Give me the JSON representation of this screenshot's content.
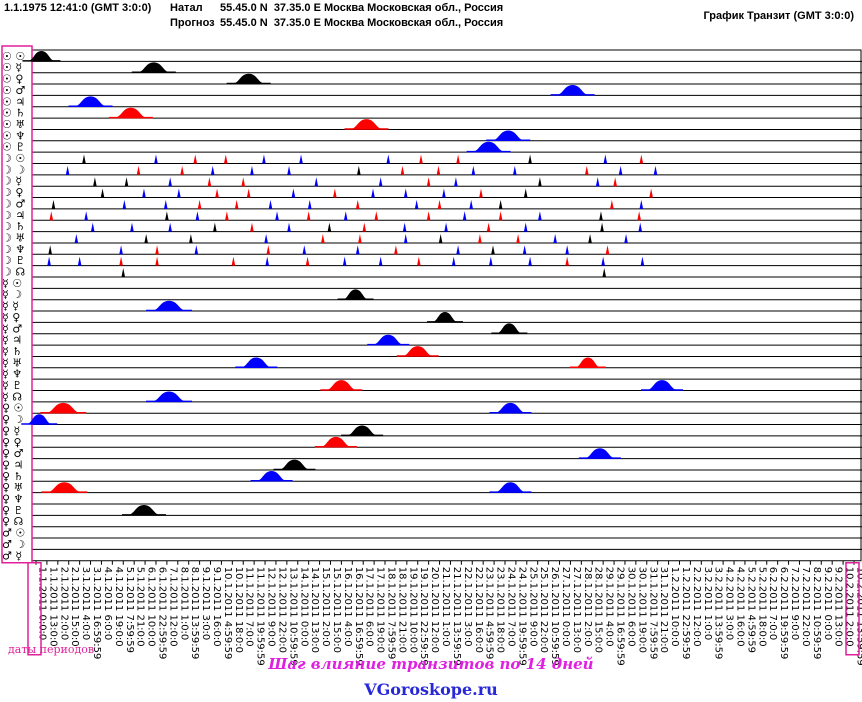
{
  "header": {
    "date_text": "1.1.1975 12:41:0 (GMT 3:0:0)",
    "natal_label": "Натал",
    "natal_coords": "55.45.0 N  37.35.0 E",
    "natal_place": "Москва Московская обл., Россия",
    "forecast_label": "Прогноз",
    "forecast_coords": "55.45.0 N  37.35.0 E",
    "forecast_place": "Москва Московская обл., Россия",
    "chart_title": "График Транзит (GMT 3:0:0)"
  },
  "colors": {
    "black": "#000000",
    "blue": "#0000ff",
    "red": "#ff0000",
    "highlight": "#e0209a",
    "grid": "#000000"
  },
  "footer": {
    "periods_label": "даты периодов",
    "step_note": "Шаг влияние транзитов по 14 дней",
    "site_name": "VGoroskope.ru"
  },
  "chart_data": {
    "type": "timeline",
    "title": "График Транзит (GMT 3:0:0)",
    "row_labels": [
      "☉ ☉",
      "☉ ☿",
      "☉ ♀",
      "☉ ♂",
      "☉ ♃",
      "☉ ♄",
      "☉ ♅",
      "☉ ♆",
      "☉ ♇",
      "☽ ☉",
      "☽ ☽",
      "☽ ☿",
      "☽ ♀",
      "☽ ♂",
      "☽ ♃",
      "☽ ♄",
      "☽ ♅",
      "☽ ♆",
      "☽ ♇",
      "☽ ☊",
      "☿ ☉",
      "☿ ☽",
      "☿ ☿",
      "☿ ♀",
      "☿ ♂",
      "☿ ♃",
      "☿ ♄",
      "☿ ♅",
      "☿ ♆",
      "☿ ♇",
      "☿ ☊",
      "♀ ☉",
      "♀ ☽",
      "♀ ☿",
      "♀ ♀",
      "♀ ♂",
      "♀ ♃",
      "♀ ♄",
      "♀ ♅",
      "♀ ♆",
      "♀ ♇",
      "♀ ☊",
      "♂ ☉",
      "♂ ☽",
      "♂ ☿"
    ],
    "x_ticks": [
      "1.1.2011 0:0:0",
      "1.1.2011 13:0:0",
      "2.1.2011 2:0:0",
      "2.1.2011 15:0:0",
      "3.1.2011 4:0:0",
      "3.1.2011 16:59:59",
      "4.1.2011 6:0:0",
      "4.1.2011 19:0:0",
      "5.1.2011 7:59:59",
      "5.1.2011 21:0:0",
      "6.1.2011 10:0:0",
      "6.1.2011 22:59:59",
      "7.1.2011 12:0:0",
      "8.1.2011 1:0:0",
      "8.1.2011 13:59:59",
      "9.1.2011 3:0:0",
      "9.1.2011 16:0:0",
      "10.1.2011 4:59:59",
      "10.1.2011 18:0:0",
      "11.1.2011 7:0:0",
      "11.1.2011 19:59:59",
      "12.1.2011 9:0:0",
      "12.1.2011 22:0:0",
      "13.1.2011 10:59:59",
      "14.1.2011 0:0:0",
      "14.1.2011 13:0:0",
      "15.1.2011 2:0:0",
      "15.1.2011 15:0:0",
      "16.1.2011 4:0:0",
      "16.1.2011 16:59:59",
      "17.1.2011 6:0:0",
      "17.1.2011 19:0:0",
      "18.1.2011 7:59:59",
      "18.1.2011 21:0:0",
      "19.1.2011 10:0:0",
      "19.1.2011 22:59:59",
      "20.1.2011 12:0:0",
      "21.1.2011 1:0:0",
      "21.1.2011 13:59:59",
      "22.1.2011 3:0:0",
      "22.1.2011 16:0:0",
      "23.1.2011 4:59:59",
      "23.1.2011 18:0:0",
      "24.1.2011 7:0:0",
      "24.1.2011 19:59:59",
      "25.1.2011 9:0:0",
      "25.1.2011 22:0:0",
      "26.1.2011 10:59:59",
      "27.1.2011 0:0:0",
      "27.1.2011 13:0:0",
      "28.1.2011 2:0:0",
      "28.1.2011 15:0:0",
      "29.1.2011 4:0:0",
      "29.1.2011 16:59:59",
      "30.1.2011 6:0:0",
      "30.1.2011 19:0:0",
      "31.1.2011 7:59:59",
      "31.1.2011 21:0:0",
      "1.2.2011 10:0:0",
      "1.2.2011 22:59:59",
      "2.2.2011 12:0:0",
      "3.2.2011 1:0:0",
      "3.2.2011 13:59:59",
      "4.2.2011 3:0:0",
      "4.2.2011 16:0:0",
      "5.2.2011 4:59:59",
      "5.2.2011 18:0:0",
      "6.2.2011 7:0:0",
      "6.2.2011 19:59:59",
      "7.2.2011 9:0:0",
      "7.2.2011 22:0:0",
      "8.2.2011 10:59:59",
      "9.2.2011 0:0:0",
      "9.2.2011 13:0:0",
      "10.2.2011 2:0:0",
      "10.2.2011 13:59:59"
    ],
    "peaks": [
      {
        "row": 0,
        "pos": 0.5,
        "color": "black",
        "w": 30
      },
      {
        "row": 1,
        "pos": 10.8,
        "color": "black",
        "w": 36
      },
      {
        "row": 2,
        "pos": 19.5,
        "color": "black",
        "w": 36
      },
      {
        "row": 3,
        "pos": 49.2,
        "color": "blue",
        "w": 36
      },
      {
        "row": 4,
        "pos": 5.0,
        "color": "blue",
        "w": 36
      },
      {
        "row": 5,
        "pos": 8.7,
        "color": "red",
        "w": 36
      },
      {
        "row": 6,
        "pos": 30.3,
        "color": "red",
        "w": 36
      },
      {
        "row": 7,
        "pos": 43.3,
        "color": "blue",
        "w": 36
      },
      {
        "row": 8,
        "pos": 41.5,
        "color": "blue",
        "w": 36
      },
      {
        "row": 21,
        "pos": 29.3,
        "color": "black",
        "w": 28
      },
      {
        "row": 22,
        "pos": 12.2,
        "color": "blue",
        "w": 38
      },
      {
        "row": 23,
        "pos": 37.5,
        "color": "black",
        "w": 28
      },
      {
        "row": 24,
        "pos": 43.4,
        "color": "black",
        "w": 28
      },
      {
        "row": 25,
        "pos": 32.3,
        "color": "blue",
        "w": 34
      },
      {
        "row": 26,
        "pos": 35.0,
        "color": "red",
        "w": 34
      },
      {
        "row": 27,
        "pos": 20.2,
        "color": "blue",
        "w": 34
      },
      {
        "row": 27,
        "pos": 50.6,
        "color": "red",
        "w": 28
      },
      {
        "row": 29,
        "pos": 28.0,
        "color": "red",
        "w": 34
      },
      {
        "row": 29,
        "pos": 57.4,
        "color": "blue",
        "w": 34
      },
      {
        "row": 30,
        "pos": 12.2,
        "color": "blue",
        "w": 38
      },
      {
        "row": 31,
        "pos": 2.5,
        "color": "red",
        "w": 38
      },
      {
        "row": 31,
        "pos": 43.5,
        "color": "blue",
        "w": 34
      },
      {
        "row": 32,
        "pos": 0.3,
        "color": "blue",
        "w": 28
      },
      {
        "row": 33,
        "pos": 29.9,
        "color": "black",
        "w": 34
      },
      {
        "row": 34,
        "pos": 27.5,
        "color": "red",
        "w": 34
      },
      {
        "row": 35,
        "pos": 51.7,
        "color": "blue",
        "w": 34
      },
      {
        "row": 36,
        "pos": 23.7,
        "color": "black",
        "w": 34
      },
      {
        "row": 37,
        "pos": 21.6,
        "color": "blue",
        "w": 34
      },
      {
        "row": 38,
        "pos": 2.6,
        "color": "red",
        "w": 38
      },
      {
        "row": 38,
        "pos": 43.5,
        "color": "blue",
        "w": 34
      },
      {
        "row": 40,
        "pos": 9.9,
        "color": "black",
        "w": 36
      }
    ],
    "moon_spikes": [
      {
        "row": 9,
        "pos": 4.4,
        "color": "black"
      },
      {
        "row": 9,
        "pos": 11.0,
        "color": "blue"
      },
      {
        "row": 9,
        "pos": 14.6,
        "color": "red"
      },
      {
        "row": 9,
        "pos": 17.4,
        "color": "red"
      },
      {
        "row": 9,
        "pos": 20.9,
        "color": "blue"
      },
      {
        "row": 9,
        "pos": 24.3,
        "color": "blue"
      },
      {
        "row": 9,
        "pos": 32.3,
        "color": "blue"
      },
      {
        "row": 9,
        "pos": 35.3,
        "color": "red"
      },
      {
        "row": 9,
        "pos": 38.7,
        "color": "red"
      },
      {
        "row": 9,
        "pos": 45.3,
        "color": "black"
      },
      {
        "row": 9,
        "pos": 52.2,
        "color": "blue"
      },
      {
        "row": 9,
        "pos": 55.5,
        "color": "red"
      },
      {
        "row": 10,
        "pos": 2.9,
        "color": "blue"
      },
      {
        "row": 10,
        "pos": 9.4,
        "color": "red"
      },
      {
        "row": 10,
        "pos": 13.4,
        "color": "red"
      },
      {
        "row": 10,
        "pos": 16.2,
        "color": "blue"
      },
      {
        "row": 10,
        "pos": 19.8,
        "color": "blue"
      },
      {
        "row": 10,
        "pos": 23.2,
        "color": "blue"
      },
      {
        "row": 10,
        "pos": 29.6,
        "color": "black"
      },
      {
        "row": 10,
        "pos": 33.6,
        "color": "red"
      },
      {
        "row": 10,
        "pos": 36.9,
        "color": "red"
      },
      {
        "row": 10,
        "pos": 40.1,
        "color": "blue"
      },
      {
        "row": 10,
        "pos": 43.9,
        "color": "blue"
      },
      {
        "row": 10,
        "pos": 50.5,
        "color": "red"
      },
      {
        "row": 10,
        "pos": 53.6,
        "color": "blue"
      },
      {
        "row": 10,
        "pos": 56.8,
        "color": "blue"
      },
      {
        "row": 11,
        "pos": 5.4,
        "color": "black"
      },
      {
        "row": 11,
        "pos": 8.3,
        "color": "black"
      },
      {
        "row": 11,
        "pos": 12.3,
        "color": "blue"
      },
      {
        "row": 11,
        "pos": 15.9,
        "color": "red"
      },
      {
        "row": 11,
        "pos": 19.0,
        "color": "red"
      },
      {
        "row": 11,
        "pos": 25.7,
        "color": "blue"
      },
      {
        "row": 11,
        "pos": 31.6,
        "color": "blue"
      },
      {
        "row": 11,
        "pos": 36.0,
        "color": "red"
      },
      {
        "row": 11,
        "pos": 38.5,
        "color": "blue"
      },
      {
        "row": 11,
        "pos": 46.2,
        "color": "black"
      },
      {
        "row": 11,
        "pos": 51.5,
        "color": "blue"
      },
      {
        "row": 11,
        "pos": 53.1,
        "color": "red"
      },
      {
        "row": 12,
        "pos": 6.1,
        "color": "black"
      },
      {
        "row": 12,
        "pos": 9.9,
        "color": "blue"
      },
      {
        "row": 12,
        "pos": 13.1,
        "color": "blue"
      },
      {
        "row": 12,
        "pos": 16.6,
        "color": "red"
      },
      {
        "row": 12,
        "pos": 19.5,
        "color": "red"
      },
      {
        "row": 12,
        "pos": 23.6,
        "color": "blue"
      },
      {
        "row": 12,
        "pos": 27.4,
        "color": "red"
      },
      {
        "row": 12,
        "pos": 30.9,
        "color": "blue"
      },
      {
        "row": 12,
        "pos": 33.9,
        "color": "blue"
      },
      {
        "row": 12,
        "pos": 37.4,
        "color": "blue"
      },
      {
        "row": 12,
        "pos": 40.8,
        "color": "red"
      },
      {
        "row": 12,
        "pos": 44.9,
        "color": "black"
      },
      {
        "row": 12,
        "pos": 56.4,
        "color": "red"
      },
      {
        "row": 13,
        "pos": 1.6,
        "color": "black"
      },
      {
        "row": 13,
        "pos": 8.1,
        "color": "blue"
      },
      {
        "row": 13,
        "pos": 11.9,
        "color": "blue"
      },
      {
        "row": 13,
        "pos": 15.0,
        "color": "red"
      },
      {
        "row": 13,
        "pos": 18.4,
        "color": "red"
      },
      {
        "row": 13,
        "pos": 21.5,
        "color": "blue"
      },
      {
        "row": 13,
        "pos": 25.1,
        "color": "blue"
      },
      {
        "row": 13,
        "pos": 29.5,
        "color": "red"
      },
      {
        "row": 13,
        "pos": 34.9,
        "color": "blue"
      },
      {
        "row": 13,
        "pos": 37.0,
        "color": "red"
      },
      {
        "row": 13,
        "pos": 39.9,
        "color": "blue"
      },
      {
        "row": 13,
        "pos": 42.6,
        "color": "black"
      },
      {
        "row": 13,
        "pos": 52.8,
        "color": "red"
      },
      {
        "row": 13,
        "pos": 55.5,
        "color": "blue"
      },
      {
        "row": 14,
        "pos": 1.4,
        "color": "red"
      },
      {
        "row": 14,
        "pos": 4.6,
        "color": "blue"
      },
      {
        "row": 14,
        "pos": 12.0,
        "color": "black"
      },
      {
        "row": 14,
        "pos": 14.8,
        "color": "blue"
      },
      {
        "row": 14,
        "pos": 17.5,
        "color": "red"
      },
      {
        "row": 14,
        "pos": 22.1,
        "color": "blue"
      },
      {
        "row": 14,
        "pos": 25.0,
        "color": "red"
      },
      {
        "row": 14,
        "pos": 28.4,
        "color": "blue"
      },
      {
        "row": 14,
        "pos": 31.2,
        "color": "red"
      },
      {
        "row": 14,
        "pos": 36.0,
        "color": "red"
      },
      {
        "row": 14,
        "pos": 39.3,
        "color": "blue"
      },
      {
        "row": 14,
        "pos": 42.6,
        "color": "red"
      },
      {
        "row": 14,
        "pos": 46.2,
        "color": "blue"
      },
      {
        "row": 14,
        "pos": 51.8,
        "color": "black"
      },
      {
        "row": 14,
        "pos": 55.3,
        "color": "red"
      },
      {
        "row": 15,
        "pos": 5.2,
        "color": "blue"
      },
      {
        "row": 15,
        "pos": 8.8,
        "color": "blue"
      },
      {
        "row": 15,
        "pos": 12.3,
        "color": "blue"
      },
      {
        "row": 15,
        "pos": 16.4,
        "color": "black"
      },
      {
        "row": 15,
        "pos": 19.8,
        "color": "red"
      },
      {
        "row": 15,
        "pos": 23.2,
        "color": "blue"
      },
      {
        "row": 15,
        "pos": 26.9,
        "color": "black"
      },
      {
        "row": 15,
        "pos": 30.1,
        "color": "red"
      },
      {
        "row": 15,
        "pos": 33.8,
        "color": "blue"
      },
      {
        "row": 15,
        "pos": 37.6,
        "color": "blue"
      },
      {
        "row": 15,
        "pos": 41.5,
        "color": "red"
      },
      {
        "row": 15,
        "pos": 44.9,
        "color": "blue"
      },
      {
        "row": 15,
        "pos": 51.9,
        "color": "black"
      },
      {
        "row": 15,
        "pos": 55.4,
        "color": "blue"
      },
      {
        "row": 16,
        "pos": 3.7,
        "color": "blue"
      },
      {
        "row": 16,
        "pos": 10.1,
        "color": "black"
      },
      {
        "row": 16,
        "pos": 14.2,
        "color": "black"
      },
      {
        "row": 16,
        "pos": 21.1,
        "color": "blue"
      },
      {
        "row": 16,
        "pos": 26.3,
        "color": "red"
      },
      {
        "row": 16,
        "pos": 29.7,
        "color": "red"
      },
      {
        "row": 16,
        "pos": 33.9,
        "color": "blue"
      },
      {
        "row": 16,
        "pos": 37.1,
        "color": "black"
      },
      {
        "row": 16,
        "pos": 40.7,
        "color": "red"
      },
      {
        "row": 16,
        "pos": 44.2,
        "color": "red"
      },
      {
        "row": 16,
        "pos": 47.6,
        "color": "blue"
      },
      {
        "row": 16,
        "pos": 50.8,
        "color": "black"
      },
      {
        "row": 16,
        "pos": 54.1,
        "color": "blue"
      },
      {
        "row": 17,
        "pos": 1.3,
        "color": "black"
      },
      {
        "row": 17,
        "pos": 7.8,
        "color": "blue"
      },
      {
        "row": 17,
        "pos": 11.1,
        "color": "red"
      },
      {
        "row": 17,
        "pos": 14.7,
        "color": "blue"
      },
      {
        "row": 17,
        "pos": 21.3,
        "color": "red"
      },
      {
        "row": 17,
        "pos": 24.6,
        "color": "blue"
      },
      {
        "row": 17,
        "pos": 29.5,
        "color": "blue"
      },
      {
        "row": 17,
        "pos": 33.0,
        "color": "red"
      },
      {
        "row": 17,
        "pos": 38.7,
        "color": "blue"
      },
      {
        "row": 17,
        "pos": 41.9,
        "color": "black"
      },
      {
        "row": 17,
        "pos": 44.8,
        "color": "blue"
      },
      {
        "row": 17,
        "pos": 48.7,
        "color": "blue"
      },
      {
        "row": 17,
        "pos": 52.4,
        "color": "red"
      },
      {
        "row": 18,
        "pos": 1.2,
        "color": "blue"
      },
      {
        "row": 18,
        "pos": 4.0,
        "color": "blue"
      },
      {
        "row": 18,
        "pos": 7.8,
        "color": "red"
      },
      {
        "row": 18,
        "pos": 11.1,
        "color": "red"
      },
      {
        "row": 18,
        "pos": 18.1,
        "color": "red"
      },
      {
        "row": 18,
        "pos": 21.2,
        "color": "blue"
      },
      {
        "row": 18,
        "pos": 24.9,
        "color": "red"
      },
      {
        "row": 18,
        "pos": 28.3,
        "color": "blue"
      },
      {
        "row": 18,
        "pos": 31.6,
        "color": "blue"
      },
      {
        "row": 18,
        "pos": 35.1,
        "color": "red"
      },
      {
        "row": 18,
        "pos": 38.3,
        "color": "blue"
      },
      {
        "row": 18,
        "pos": 41.7,
        "color": "blue"
      },
      {
        "row": 18,
        "pos": 45.3,
        "color": "blue"
      },
      {
        "row": 18,
        "pos": 48.7,
        "color": "red"
      },
      {
        "row": 18,
        "pos": 52.0,
        "color": "blue"
      },
      {
        "row": 18,
        "pos": 55.6,
        "color": "blue"
      },
      {
        "row": 19,
        "pos": 8.0,
        "color": "black"
      },
      {
        "row": 19,
        "pos": 52.1,
        "color": "black"
      }
    ]
  }
}
